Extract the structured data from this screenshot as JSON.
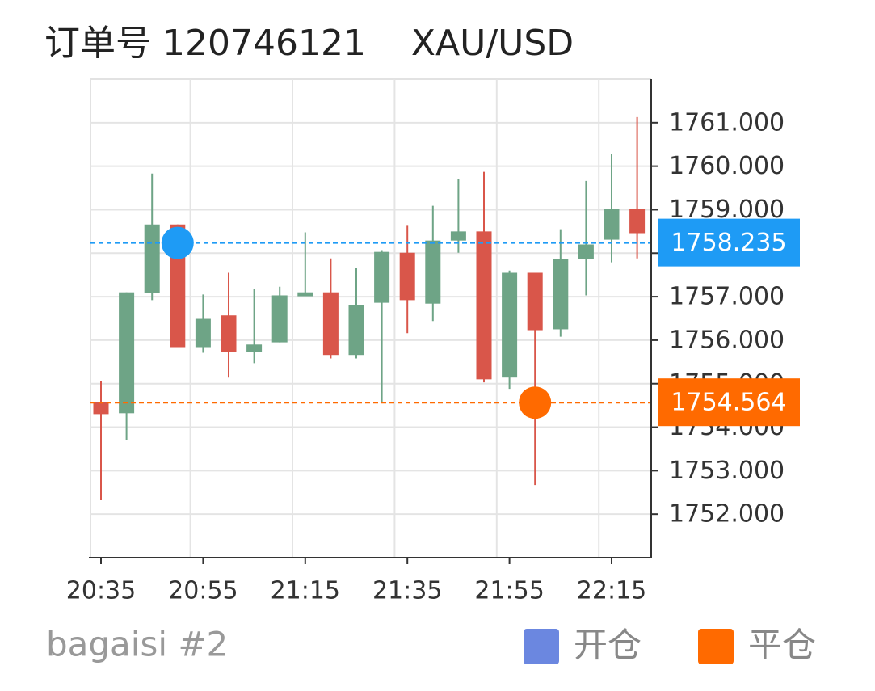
{
  "chart_data": {
    "type": "candlestick",
    "title": "订单号 120746121    XAU/USD",
    "subtitle": "bagaisi #2",
    "categories": [
      "20:35",
      null,
      null,
      null,
      "20:55",
      null,
      null,
      null,
      "21:15",
      null,
      null,
      null,
      "21:35",
      null,
      null,
      null,
      "21:55",
      null,
      null,
      null,
      "22:15",
      null
    ],
    "open": [
      1754.58,
      1754.32,
      1757.09,
      1758.66,
      1755.84,
      1756.57,
      1755.73,
      1755.95,
      1757.01,
      1757.1,
      1755.66,
      1756.86,
      1758.01,
      1756.84,
      1758.29,
      1758.5,
      1755.14,
      1757.55,
      1756.25,
      1757.86,
      1758.31,
      1759.01
    ],
    "high": [
      1755.06,
      1757.1,
      1759.83,
      1758.66,
      1757.05,
      1757.55,
      1757.18,
      1757.23,
      1758.48,
      1757.88,
      1757.66,
      1758.07,
      1758.63,
      1759.09,
      1759.7,
      1759.87,
      1757.6,
      1757.55,
      1758.55,
      1759.66,
      1760.29,
      1761.13
    ],
    "low": [
      1752.32,
      1753.71,
      1756.92,
      1755.84,
      1755.71,
      1755.14,
      1755.47,
      1755.95,
      1757.01,
      1755.58,
      1755.58,
      1754.58,
      1756.16,
      1756.44,
      1758.01,
      1755.03,
      1754.88,
      1752.67,
      1756.08,
      1757.03,
      1757.79,
      1757.88
    ],
    "close": [
      1754.3,
      1757.1,
      1758.66,
      1755.84,
      1756.49,
      1755.73,
      1755.9,
      1757.03,
      1757.1,
      1755.66,
      1756.81,
      1758.03,
      1756.92,
      1758.29,
      1758.5,
      1755.1,
      1757.55,
      1756.23,
      1757.86,
      1758.2,
      1759.01,
      1758.46
    ],
    "up_color": "#6ea486",
    "down_color": "#d9564a",
    "ylim": [
      1751,
      1762
    ],
    "yticks": [
      {
        "value": 1752,
        "label": "1752.000"
      },
      {
        "value": 1753,
        "label": "1753.000"
      },
      {
        "value": 1754,
        "label": "1754.000"
      },
      {
        "value": 1755,
        "label": "1755.000"
      },
      {
        "value": 1756,
        "label": "1756.000"
      },
      {
        "value": 1757,
        "label": "1757.000"
      },
      {
        "value": 1758,
        "label": "1758.000"
      },
      {
        "value": 1759,
        "label": "1759.000"
      },
      {
        "value": 1760,
        "label": "1760.000"
      },
      {
        "value": 1761,
        "label": "1761.000"
      }
    ],
    "grid": true,
    "trades": [
      {
        "name": "开仓",
        "value": 1758.235,
        "candle": 3,
        "color": "#1e9bf5",
        "legend_color": "#6b87e0"
      },
      {
        "name": "平仓",
        "value": 1754.564,
        "candle": 17,
        "color": "#ff6a00",
        "legend_color": "#ff6a00"
      }
    ]
  }
}
